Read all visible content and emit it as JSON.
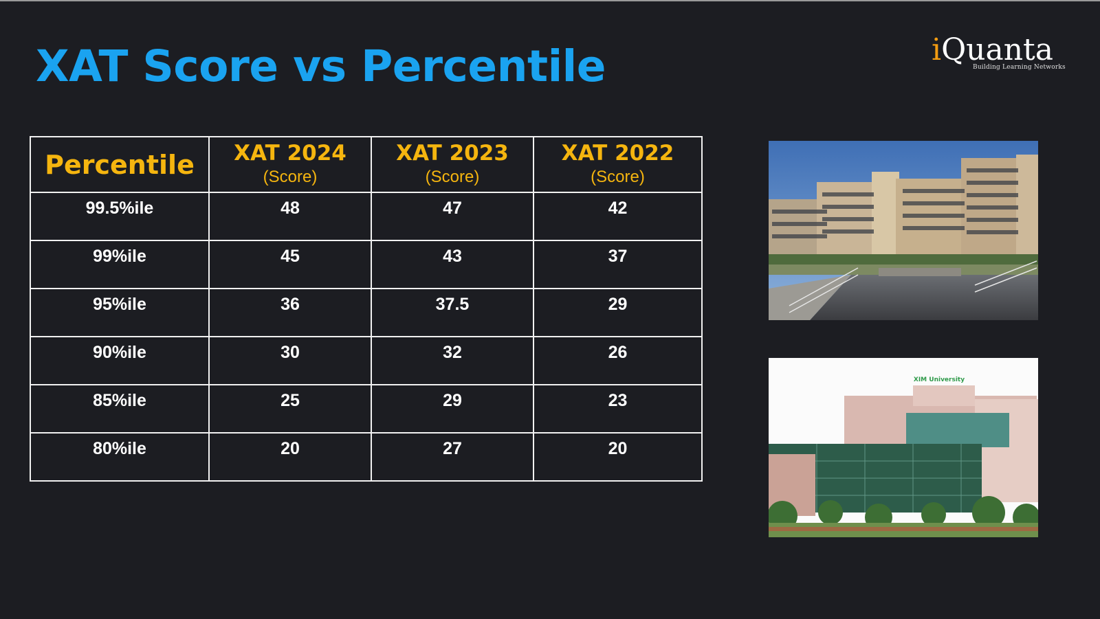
{
  "title": "XAT Score vs Percentile",
  "logo": {
    "i_letter": "i",
    "word_rest": "Quanta",
    "tagline": "Building Learning Networks"
  },
  "table": {
    "headers": [
      {
        "label": "Percentile",
        "sub": ""
      },
      {
        "label": "XAT 2024",
        "sub": "(Score)"
      },
      {
        "label": "XAT 2023",
        "sub": "(Score)"
      },
      {
        "label": "XAT 2022",
        "sub": "(Score)"
      }
    ],
    "rows": [
      [
        "99.5%ile",
        "48",
        "47",
        "42"
      ],
      [
        "99%ile",
        "45",
        "43",
        "37"
      ],
      [
        "95%ile",
        "36",
        "37.5",
        "29"
      ],
      [
        "90%ile",
        "30",
        "32",
        "26"
      ],
      [
        "85%ile",
        "25",
        "29",
        "23"
      ],
      [
        "80%ile",
        "20",
        "27",
        "20"
      ]
    ]
  },
  "photo2_sign": "XIM University",
  "colors": {
    "background": "#1c1d22",
    "title": "#1aa3f0",
    "header_text": "#f5b50f",
    "cell_text": "#ffffff",
    "grid": "#f2f2f2",
    "logo_accent": "#f39c12"
  }
}
